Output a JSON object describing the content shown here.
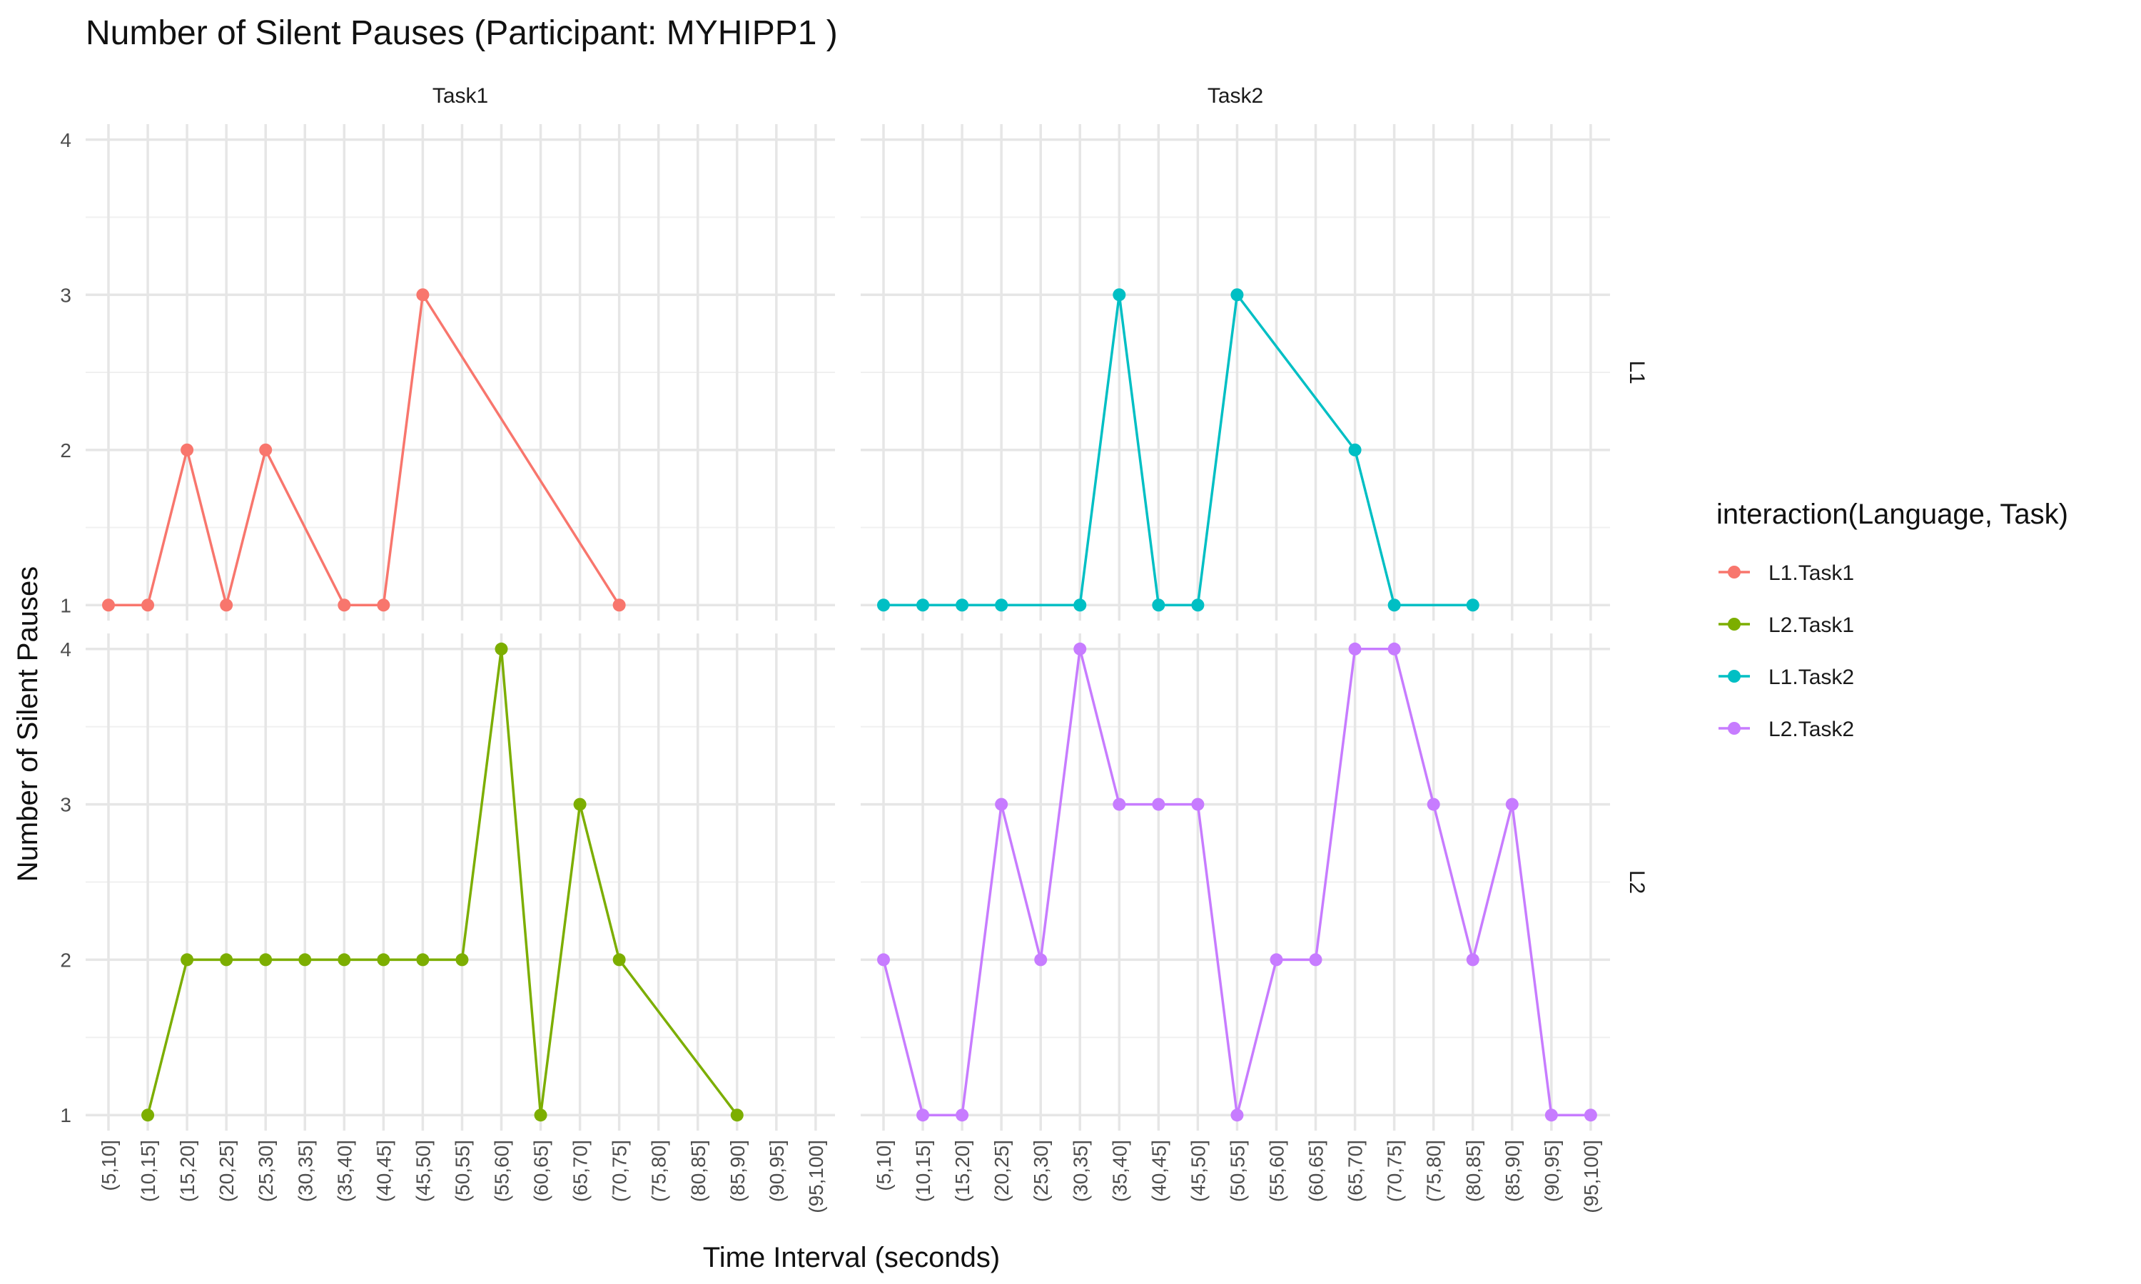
{
  "chart_data": {
    "type": "line",
    "title": "Number of Silent Pauses (Participant: MYHIPP1 )",
    "xlabel": "Time Interval (seconds)",
    "ylabel": "Number of Silent Pauses",
    "categories": [
      "(5,10]",
      "(10,15]",
      "(15,20]",
      "(20,25]",
      "(25,30]",
      "(30,35]",
      "(35,40]",
      "(40,45]",
      "(45,50]",
      "(50,55]",
      "(55,60]",
      "(60,65]",
      "(65,70]",
      "(70,75]",
      "(75,80]",
      "(80,85]",
      "(85,90]",
      "(90,95]",
      "(95,100]"
    ],
    "y_ticks": [
      1,
      2,
      3,
      4
    ],
    "ylim": [
      0.9,
      4.1
    ],
    "columns": [
      "Task1",
      "Task2"
    ],
    "rows": [
      "L1",
      "L2"
    ],
    "legend_title": "interaction(Language, Task)",
    "legend_position": "right",
    "grid": true,
    "series": [
      {
        "name": "L1.Task1",
        "row": "L1",
        "col": "Task1",
        "color": "#F8766D",
        "x": [
          "(5,10]",
          "(10,15]",
          "(15,20]",
          "(20,25]",
          "(25,30]",
          "(35,40]",
          "(40,45]",
          "(45,50]",
          "(70,75]"
        ],
        "values": [
          1,
          1,
          2,
          1,
          2,
          1,
          1,
          3,
          1
        ]
      },
      {
        "name": "L2.Task1",
        "row": "L2",
        "col": "Task1",
        "color": "#7CAE00",
        "x": [
          "(10,15]",
          "(15,20]",
          "(20,25]",
          "(25,30]",
          "(30,35]",
          "(35,40]",
          "(40,45]",
          "(45,50]",
          "(50,55]",
          "(55,60]",
          "(60,65]",
          "(65,70]",
          "(70,75]",
          "(85,90]"
        ],
        "values": [
          1,
          2,
          2,
          2,
          2,
          2,
          2,
          2,
          2,
          4,
          1,
          3,
          2,
          1
        ]
      },
      {
        "name": "L1.Task2",
        "row": "L1",
        "col": "Task2",
        "color": "#00BFC4",
        "x": [
          "(5,10]",
          "(10,15]",
          "(15,20]",
          "(20,25]",
          "(30,35]",
          "(35,40]",
          "(40,45]",
          "(45,50]",
          "(50,55]",
          "(65,70]",
          "(70,75]",
          "(80,85]"
        ],
        "values": [
          1,
          1,
          1,
          1,
          1,
          3,
          1,
          1,
          3,
          2,
          1,
          1
        ]
      },
      {
        "name": "L2.Task2",
        "row": "L2",
        "col": "Task2",
        "color": "#C77CFF",
        "x": [
          "(5,10]",
          "(10,15]",
          "(15,20]",
          "(20,25]",
          "(25,30]",
          "(30,35]",
          "(35,40]",
          "(40,45]",
          "(45,50]",
          "(50,55]",
          "(55,60]",
          "(60,65]",
          "(65,70]",
          "(70,75]",
          "(75,80]",
          "(80,85]",
          "(85,90]",
          "(90,95]",
          "(95,100]"
        ],
        "values": [
          2,
          1,
          1,
          3,
          2,
          4,
          3,
          3,
          3,
          1,
          2,
          2,
          4,
          4,
          3,
          2,
          3,
          1,
          1
        ]
      }
    ]
  }
}
